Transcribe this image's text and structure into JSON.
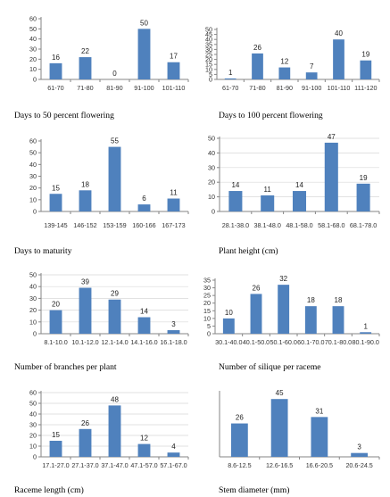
{
  "colors": {
    "bar": "#4f81bd",
    "axis": "#868686",
    "grid": "#d9d9d9"
  },
  "chart_data": [
    {
      "type": "bar",
      "caption": "Days to 50 percent flowering",
      "categories": [
        "61-70",
        "71-80",
        "81-90",
        "91-100",
        "101-110"
      ],
      "values": [
        16,
        22,
        0,
        50,
        17
      ],
      "data_labels": [
        "16",
        "22",
        "0",
        "50",
        "17"
      ],
      "ylim": [
        0,
        60
      ],
      "yticks": [
        0,
        10,
        20,
        30,
        40,
        50,
        60
      ],
      "grid": false
    },
    {
      "type": "bar",
      "caption": "Days to 100 percent flowering",
      "categories": [
        "61-70",
        "71-80",
        "81-90",
        "91-100",
        "101-110",
        "111-120"
      ],
      "values": [
        1,
        26,
        12,
        7,
        40,
        19
      ],
      "data_labels": [
        "1",
        "26",
        "12",
        "7",
        "40",
        "19"
      ],
      "ylim": [
        0,
        50
      ],
      "yticks": [
        0,
        5,
        10,
        15,
        20,
        25,
        30,
        35,
        40,
        45,
        50
      ],
      "grid": false
    },
    {
      "type": "bar",
      "caption": "Days to maturity",
      "categories": [
        "139-145",
        "146-152",
        "153-159",
        "160-166",
        "167-173"
      ],
      "values": [
        15,
        18,
        55,
        6,
        11
      ],
      "data_labels": [
        "15",
        "18",
        "55",
        "6",
        "11"
      ],
      "ylim": [
        0,
        60
      ],
      "yticks": [
        0,
        10,
        20,
        30,
        40,
        50,
        60
      ],
      "grid": false
    },
    {
      "type": "bar",
      "caption": "Plant height (cm)",
      "categories": [
        "28.1-38.0",
        "38.1-48.0",
        "48.1-58.0",
        "58.1-68.0",
        "68.1-78.0"
      ],
      "values": [
        14,
        11,
        14,
        47,
        19
      ],
      "data_labels": [
        "14",
        "11",
        "14",
        "47",
        "19"
      ],
      "ylim": [
        0,
        50
      ],
      "yticks": [
        0,
        10,
        20,
        30,
        40,
        50
      ],
      "grid": true
    },
    {
      "type": "bar",
      "caption": "Number of branches per plant",
      "categories": [
        "8.1-10.0",
        "10.1-12.0",
        "12.1-14.0",
        "14.1-16.0",
        "16.1-18.0"
      ],
      "values": [
        20,
        39,
        29,
        14,
        3
      ],
      "data_labels": [
        "20",
        "39",
        "29",
        "14",
        "3"
      ],
      "ylim": [
        0,
        50
      ],
      "yticks": [
        0,
        10,
        20,
        30,
        40,
        50
      ],
      "grid": true
    },
    {
      "type": "bar",
      "caption": "Number of silique per raceme",
      "categories": [
        "30.1-40.0",
        "40.1-50.0",
        "50.1-60.0",
        "60.1-70.0",
        "70.1-80.0",
        "80.1-90.0"
      ],
      "values": [
        10,
        26,
        32,
        18,
        18,
        1
      ],
      "data_labels": [
        "10",
        "26",
        "32",
        "18",
        "18",
        "1"
      ],
      "ylim": [
        0,
        35
      ],
      "yticks": [
        0,
        5,
        10,
        15,
        20,
        25,
        30,
        35
      ],
      "grid": false
    },
    {
      "type": "bar",
      "caption": "Raceme length (cm)",
      "categories": [
        "17.1-27.0",
        "27.1-37.0",
        "37.1-47.0",
        "47.1-57.0",
        "57.1-67.0"
      ],
      "values": [
        15,
        26,
        48,
        12,
        4
      ],
      "data_labels": [
        "15",
        "26",
        "48",
        "12",
        "4"
      ],
      "ylim": [
        0,
        60
      ],
      "yticks": [
        0,
        10,
        20,
        30,
        40,
        50,
        60
      ],
      "grid": true
    },
    {
      "type": "bar",
      "caption": "Stem diameter (mm)",
      "categories": [
        "8.6-12.5",
        "12.6-16.5",
        "16.6-20.5",
        "20.6-24.5"
      ],
      "values": [
        26,
        45,
        31,
        3
      ],
      "data_labels": [
        "26",
        "45",
        "31",
        "3"
      ],
      "ylim": [
        0,
        50
      ],
      "yticks": [],
      "grid": false
    }
  ]
}
